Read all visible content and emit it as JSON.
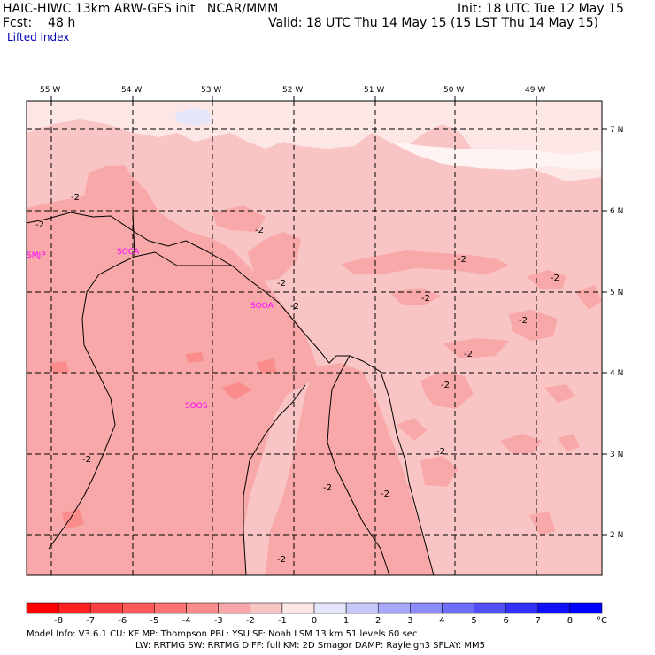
{
  "header": {
    "title": "HAIC-HIWC 13km ARW-GFS init   NCAR/MMM",
    "forecast": "Fcst:    48 h",
    "init": "Init: 18 UTC Tue 12 May 15",
    "valid": "Valid: 18 UTC Thu 14 May 15 (15 LST Thu 14 May 15)",
    "field": "Lifted index"
  },
  "map": {
    "lon_labels": [
      "55 W",
      "54 W",
      "53 W",
      "52 W",
      "51 W",
      "50 W",
      "49 W"
    ],
    "lat_labels": [
      "7 N",
      "6 N",
      "5 N",
      "4 N",
      "3 N",
      "2 N"
    ],
    "stations": [
      "SMJP",
      "SOCA",
      "SOOA",
      "SOOS"
    ],
    "contour_label": "-2"
  },
  "colorbar": {
    "labels": [
      "-8",
      "-7",
      "-6",
      "-5",
      "-4",
      "-3",
      "-2",
      "-1",
      "0",
      "1",
      "2",
      "3",
      "4",
      "5",
      "6",
      "7",
      "8"
    ],
    "unit": "°C",
    "colors": [
      "#ff0000",
      "#ff2020",
      "#ff4040",
      "#ff5a5a",
      "#ff7373",
      "#fa8c8c",
      "#f8a8a8",
      "#f8c4c4",
      "#fde6e6",
      "#e6e6fa",
      "#c8c8fa",
      "#a8a8fa",
      "#8c8cfa",
      "#6e6efa",
      "#5050fa",
      "#3030fa",
      "#1010f8",
      "#0000ff"
    ]
  },
  "footer": {
    "line1": "Model Info: V3.6.1    CU: KF       MP: Thompson     PBL: YSU       SF: Noah LSM    13 km    51 levels   60 sec",
    "line2": "LW: RRTMG    SW: RRTMG   DIFF: full   KM: 2D Smagor DAMP: Rayleigh3  SFLAY: MM5"
  }
}
